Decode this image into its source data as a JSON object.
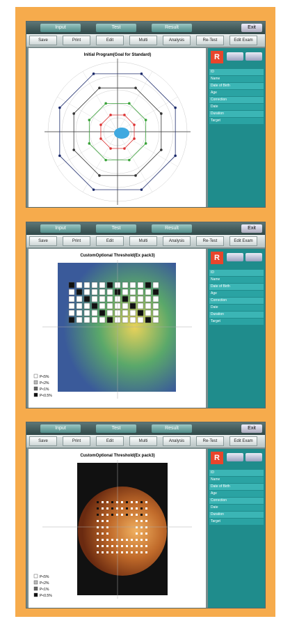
{
  "screens": [
    {
      "tabs": [
        "Input",
        "Test",
        "Result"
      ],
      "exit": "Exit",
      "buttons": [
        "Save",
        "Print",
        "Edit",
        "Multi",
        "Analysis",
        "Re-Test",
        "Edit Exam"
      ],
      "plot_title": "Initial Program(Goal for Standard)",
      "eye": "R",
      "rows": [
        "ID",
        "Name",
        "Date of Birth",
        "Age",
        "Correction",
        "Date",
        "Duration",
        "Target"
      ]
    },
    {
      "tabs": [
        "Input",
        "Test",
        "Result"
      ],
      "exit": "Exit",
      "buttons": [
        "Save",
        "Print",
        "Edit",
        "Multi",
        "Analysis",
        "Re-Test",
        "Edit Exam"
      ],
      "plot_title": "CustomOptional Threshold(Ex pack3)",
      "eye": "R",
      "rows": [
        "ID",
        "Name",
        "Date of Birth",
        "Age",
        "Correction",
        "Date",
        "Duration",
        "Target"
      ],
      "legend": [
        "P<5%",
        "P<2%",
        "P<1%",
        "P<0.5%"
      ]
    },
    {
      "tabs": [
        "Input",
        "Test",
        "Result"
      ],
      "exit": "Exit",
      "buttons": [
        "Save",
        "Print",
        "Edit",
        "Multi",
        "Analysis",
        "Re-Test",
        "Edit Exam"
      ],
      "plot_title": "CustomOptional Threshold(Ex pack3)",
      "eye": "R",
      "rows": [
        "ID",
        "Name",
        "Date of Birth",
        "Age",
        "Correction",
        "Date",
        "Duration",
        "Target"
      ],
      "legend": [
        "P<5%",
        "P<2%",
        "P<1%",
        "P<0.5%"
      ]
    }
  ]
}
